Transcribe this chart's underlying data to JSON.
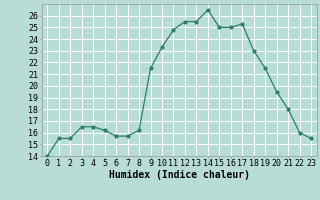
{
  "x": [
    0,
    1,
    2,
    3,
    4,
    5,
    6,
    7,
    8,
    9,
    10,
    11,
    12,
    13,
    14,
    15,
    16,
    17,
    18,
    19,
    20,
    21,
    22,
    23
  ],
  "y": [
    14,
    15.5,
    15.5,
    16.5,
    16.5,
    16.2,
    15.7,
    15.7,
    16.2,
    21.5,
    23.3,
    24.8,
    25.5,
    25.5,
    26.5,
    25.0,
    25.0,
    25.3,
    23.0,
    21.5,
    19.5,
    18.0,
    16.0,
    15.5
  ],
  "line_color": "#2e7d6e",
  "marker_color": "#2e7d6e",
  "bg_color": "#b8ddd6",
  "grid_color": "#e8e8e8",
  "xlabel": "Humidex (Indice chaleur)",
  "xlim": [
    -0.5,
    23.5
  ],
  "ylim": [
    14,
    27
  ],
  "yticks": [
    14,
    15,
    16,
    17,
    18,
    19,
    20,
    21,
    22,
    23,
    24,
    25,
    26
  ],
  "xticks": [
    0,
    1,
    2,
    3,
    4,
    5,
    6,
    7,
    8,
    9,
    10,
    11,
    12,
    13,
    14,
    15,
    16,
    17,
    18,
    19,
    20,
    21,
    22,
    23
  ],
  "xtick_labels": [
    "0",
    "1",
    "2",
    "3",
    "4",
    "5",
    "6",
    "7",
    "8",
    "9",
    "10",
    "11",
    "12",
    "13",
    "14",
    "15",
    "16",
    "17",
    "18",
    "19",
    "20",
    "21",
    "22",
    "23"
  ],
  "xlabel_fontsize": 7,
  "tick_fontsize": 6
}
